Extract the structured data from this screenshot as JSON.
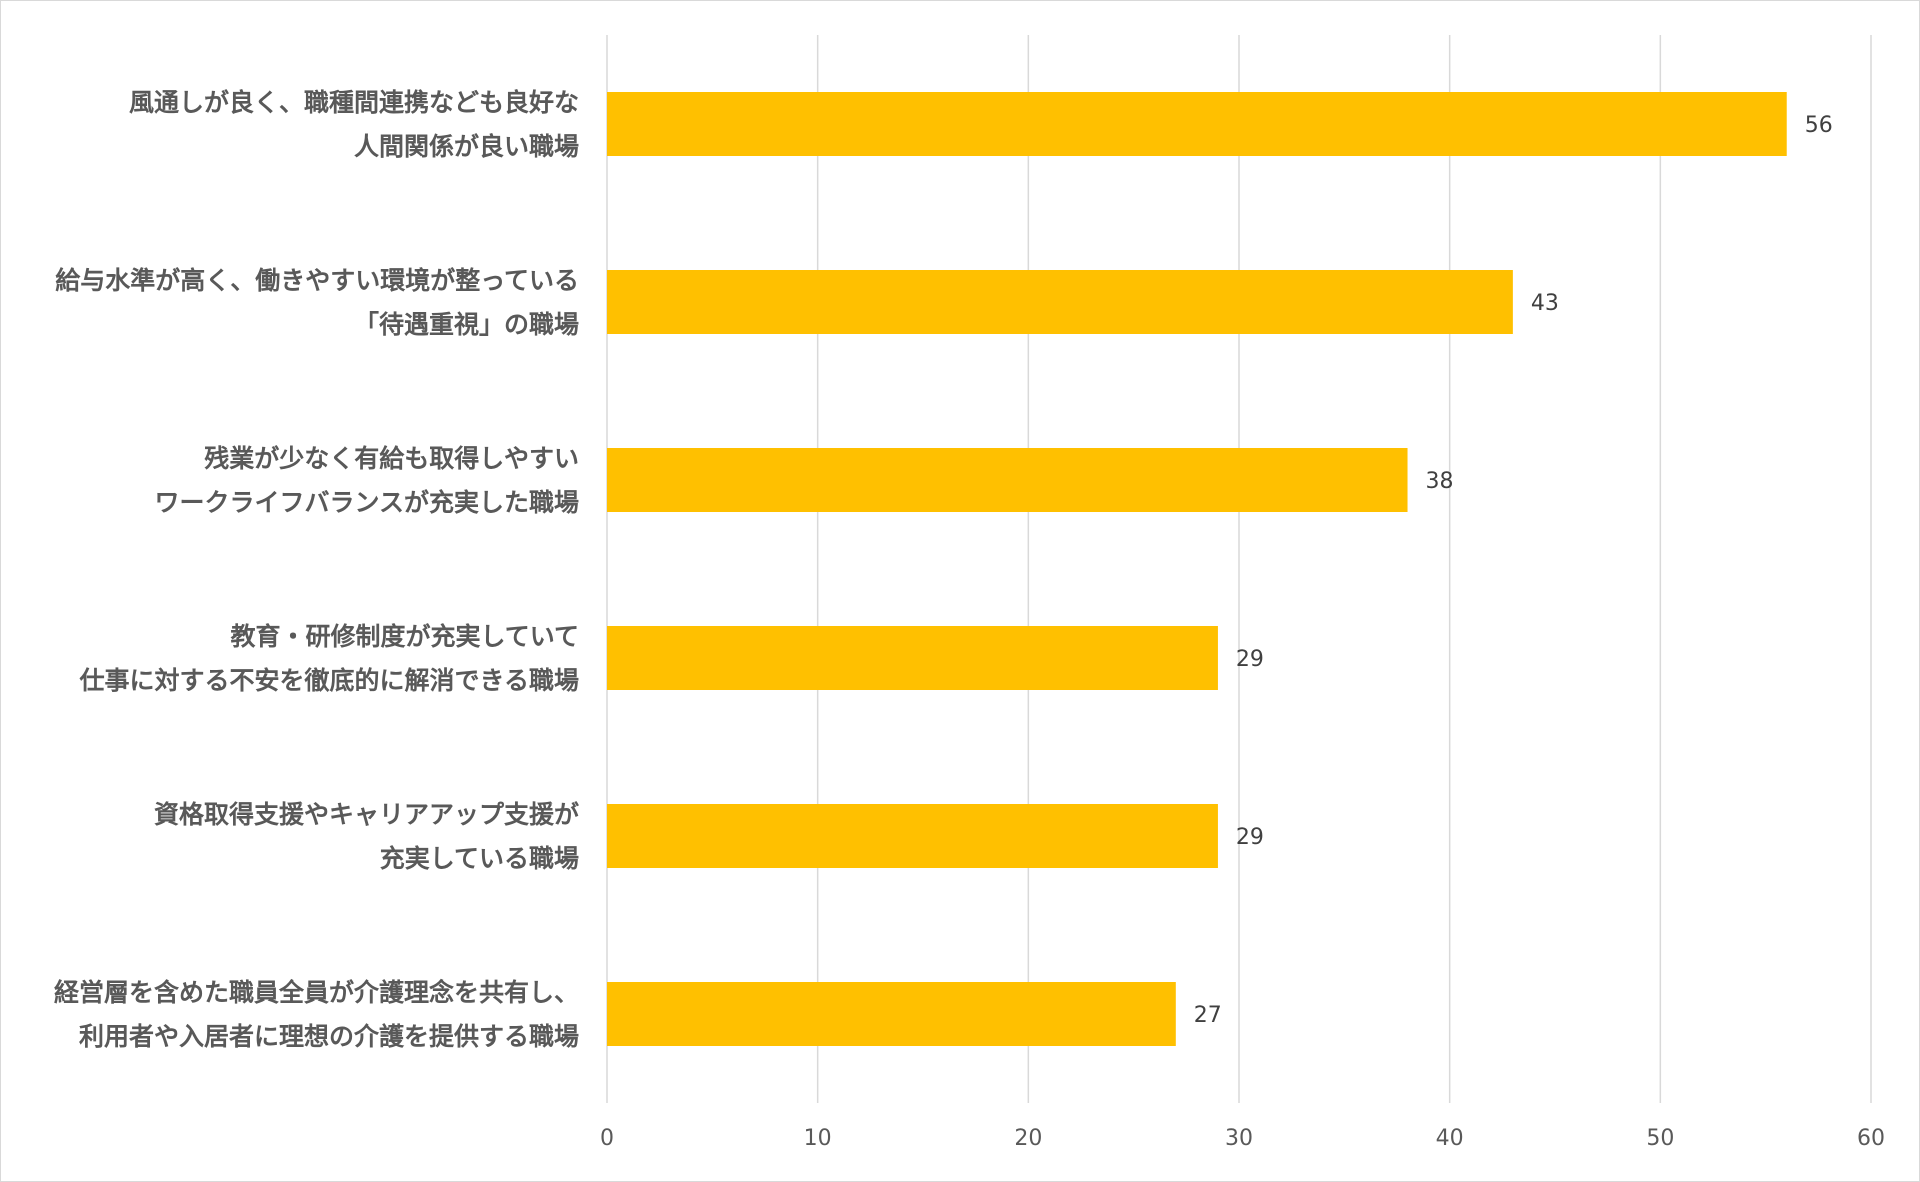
{
  "chart_data": {
    "type": "bar",
    "orientation": "horizontal",
    "title": "",
    "xlabel": "",
    "ylabel": "",
    "xlim": [
      0,
      60
    ],
    "x_ticks": [
      0,
      10,
      20,
      30,
      40,
      50,
      60
    ],
    "grid": "vertical",
    "legend": "none",
    "bar_color": "#FFC000",
    "categories": [
      [
        "風通しが良く、職種間連携なども良好な",
        "人間関係が良い職場"
      ],
      [
        "給与水準が高く、働きやすい環境が整っている",
        "「待遇重視」の職場"
      ],
      [
        "残業が少なく有給も取得しやすい",
        "ワークライフバランスが充実した職場"
      ],
      [
        "教育・研修制度が充実していて",
        "仕事に対する不安を徹底的に解消できる職場"
      ],
      [
        "資格取得支援やキャリアアップ支援が",
        "充実している職場"
      ],
      [
        "経営層を含めた職員全員が介護理念を共有し、",
        "利用者や入居者に理想の介護を提供する職場"
      ]
    ],
    "values": [
      56,
      43,
      38,
      29,
      29,
      27
    ]
  }
}
